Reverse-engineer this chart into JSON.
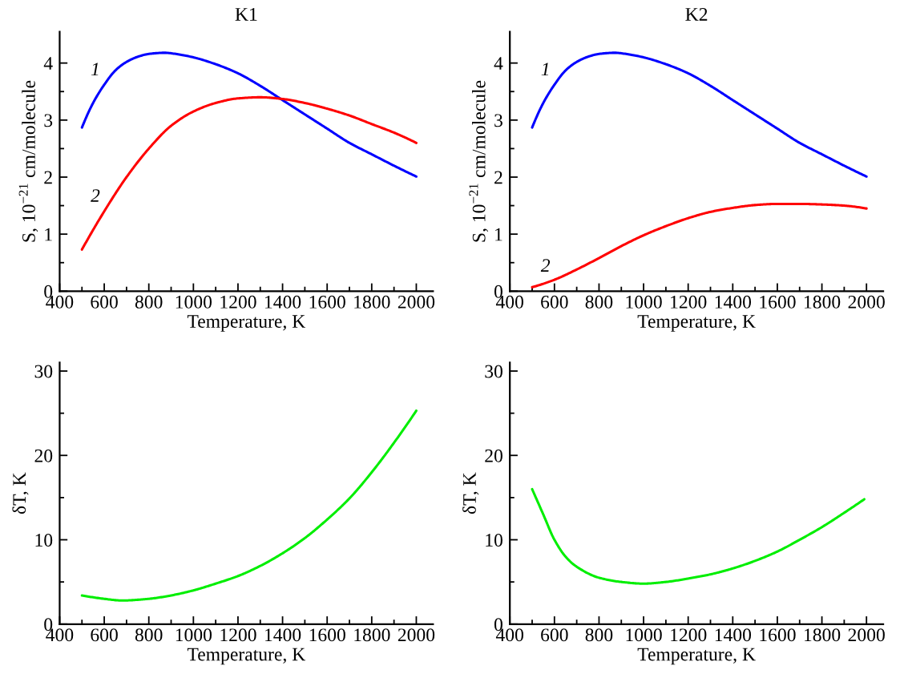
{
  "chart_data": [
    {
      "type": "line",
      "title": "K1",
      "xlabel": "Temperature, K",
      "ylabel": "S, 10$^{−21}$ cm/molecule",
      "xlim": [
        400,
        2075
      ],
      "ylim": [
        0,
        4.55
      ],
      "xticks": [
        400,
        {
          "value": 500,
          "label": null
        },
        600,
        {
          "value": 700,
          "label": null
        },
        800,
        {
          "value": 900,
          "label": null
        },
        1000,
        {
          "value": 1100,
          "label": null
        },
        1200,
        {
          "value": 1300,
          "label": null
        },
        1400,
        {
          "value": 1500,
          "label": null
        },
        1600,
        {
          "value": 1700,
          "label": null
        },
        1800,
        {
          "value": 1900,
          "label": null
        },
        2000
      ],
      "yticks": [
        0,
        {
          "value": 0.5,
          "label": null
        },
        1,
        {
          "value": 1.5,
          "label": null
        },
        2,
        {
          "value": 2.5,
          "label": null
        },
        3,
        {
          "value": 3.5,
          "label": null
        },
        4
      ],
      "grid": false,
      "line_style": "solid",
      "series": [
        {
          "name": "1",
          "color": "#0000ff",
          "x": [
            500,
            550,
            600,
            650,
            700,
            750,
            800,
            870,
            950,
            1000,
            1100,
            1200,
            1300,
            1400,
            1500,
            1600,
            1700,
            1800,
            1900,
            2000
          ],
          "values": [
            2.87,
            3.3,
            3.62,
            3.87,
            4.02,
            4.11,
            4.16,
            4.18,
            4.14,
            4.1,
            3.98,
            3.82,
            3.6,
            3.35,
            3.1,
            2.85,
            2.6,
            2.4,
            2.2,
            2.01
          ]
        },
        {
          "name": "2",
          "color": "#ff0000",
          "x": [
            500,
            600,
            700,
            800,
            900,
            1000,
            1100,
            1200,
            1300,
            1400,
            1500,
            1600,
            1700,
            1800,
            1900,
            2000
          ],
          "values": [
            0.73,
            1.4,
            2.0,
            2.5,
            2.9,
            3.15,
            3.3,
            3.38,
            3.4,
            3.37,
            3.3,
            3.2,
            3.08,
            2.93,
            2.78,
            2.6
          ]
        }
      ]
    },
    {
      "type": "line",
      "title": "K2",
      "xlabel": "Temperature, K",
      "ylabel": "S, 10$^{−21}$ cm/molecule",
      "xlim": [
        400,
        2075
      ],
      "ylim": [
        0,
        4.55
      ],
      "xticks": [
        400,
        {
          "value": 500,
          "label": null
        },
        600,
        {
          "value": 700,
          "label": null
        },
        800,
        {
          "value": 900,
          "label": null
        },
        1000,
        {
          "value": 1100,
          "label": null
        },
        1200,
        {
          "value": 1300,
          "label": null
        },
        1400,
        {
          "value": 1500,
          "label": null
        },
        1600,
        {
          "value": 1700,
          "label": null
        },
        1800,
        {
          "value": 1900,
          "label": null
        },
        2000
      ],
      "yticks": [
        0,
        {
          "value": 0.5,
          "label": null
        },
        1,
        {
          "value": 1.5,
          "label": null
        },
        2,
        {
          "value": 2.5,
          "label": null
        },
        3,
        {
          "value": 3.5,
          "label": null
        },
        4
      ],
      "grid": false,
      "line_style": "solid",
      "series": [
        {
          "name": "1",
          "color": "#0000ff",
          "x": [
            500,
            550,
            600,
            650,
            700,
            750,
            800,
            870,
            950,
            1000,
            1100,
            1200,
            1300,
            1400,
            1500,
            1600,
            1700,
            1800,
            1900,
            2000
          ],
          "values": [
            2.87,
            3.3,
            3.62,
            3.87,
            4.02,
            4.11,
            4.16,
            4.18,
            4.14,
            4.1,
            3.98,
            3.82,
            3.6,
            3.35,
            3.1,
            2.85,
            2.6,
            2.4,
            2.2,
            2.01
          ]
        },
        {
          "name": "2",
          "color": "#ff0000",
          "x": [
            500,
            600,
            700,
            800,
            900,
            1000,
            1100,
            1200,
            1300,
            1400,
            1500,
            1600,
            1700,
            1800,
            1900,
            2000
          ],
          "values": [
            0.07,
            0.2,
            0.38,
            0.58,
            0.79,
            0.98,
            1.14,
            1.28,
            1.39,
            1.46,
            1.51,
            1.53,
            1.53,
            1.52,
            1.5,
            1.45
          ]
        }
      ]
    },
    {
      "type": "line",
      "xlabel": "Temperature, K",
      "ylabel": "δT, K",
      "xlim": [
        400,
        2075
      ],
      "ylim": [
        0,
        31
      ],
      "xticks": [
        400,
        {
          "value": 500,
          "label": null
        },
        600,
        {
          "value": 700,
          "label": null
        },
        800,
        {
          "value": 900,
          "label": null
        },
        1000,
        {
          "value": 1100,
          "label": null
        },
        1200,
        {
          "value": 1300,
          "label": null
        },
        1400,
        {
          "value": 1500,
          "label": null
        },
        1600,
        {
          "value": 1700,
          "label": null
        },
        1800,
        {
          "value": 1900,
          "label": null
        },
        2000
      ],
      "yticks": [
        0,
        {
          "value": 5,
          "label": null
        },
        10,
        {
          "value": 15,
          "label": null
        },
        20,
        {
          "value": 25,
          "label": null
        },
        30
      ],
      "grid": false,
      "line_style": "solid",
      "series": [
        {
          "color": "#00ee00",
          "x": [
            500,
            600,
            680,
            800,
            900,
            1000,
            1100,
            1200,
            1300,
            1400,
            1500,
            1600,
            1700,
            1800,
            1900,
            2000
          ],
          "values": [
            3.4,
            3.0,
            2.8,
            3.0,
            3.4,
            4.0,
            4.8,
            5.7,
            6.9,
            8.4,
            10.2,
            12.4,
            14.9,
            18.0,
            21.5,
            25.3
          ]
        }
      ]
    },
    {
      "type": "line",
      "xlabel": "Temperature, K",
      "ylabel": "δT, K",
      "xlim": [
        400,
        2075
      ],
      "ylim": [
        0,
        31
      ],
      "xticks": [
        400,
        {
          "value": 500,
          "label": null
        },
        600,
        {
          "value": 700,
          "label": null
        },
        800,
        {
          "value": 900,
          "label": null
        },
        1000,
        {
          "value": 1100,
          "label": null
        },
        1200,
        {
          "value": 1300,
          "label": null
        },
        1400,
        {
          "value": 1500,
          "label": null
        },
        1600,
        {
          "value": 1700,
          "label": null
        },
        1800,
        {
          "value": 1900,
          "label": null
        },
        2000
      ],
      "yticks": [
        0,
        {
          "value": 5,
          "label": null
        },
        10,
        {
          "value": 15,
          "label": null
        },
        20,
        {
          "value": 25,
          "label": null
        },
        30
      ],
      "grid": false,
      "line_style": "solid",
      "series": [
        {
          "color": "#00ee00",
          "x": [
            500,
            550,
            600,
            650,
            700,
            800,
            900,
            1000,
            1100,
            1200,
            1300,
            1400,
            1500,
            1600,
            1700,
            1800,
            1900,
            1990
          ],
          "values": [
            16,
            13,
            10,
            8,
            6.8,
            5.5,
            5.0,
            4.8,
            5.0,
            5.4,
            5.9,
            6.6,
            7.5,
            8.6,
            10.0,
            11.5,
            13.2,
            14.8
          ]
        }
      ]
    }
  ]
}
